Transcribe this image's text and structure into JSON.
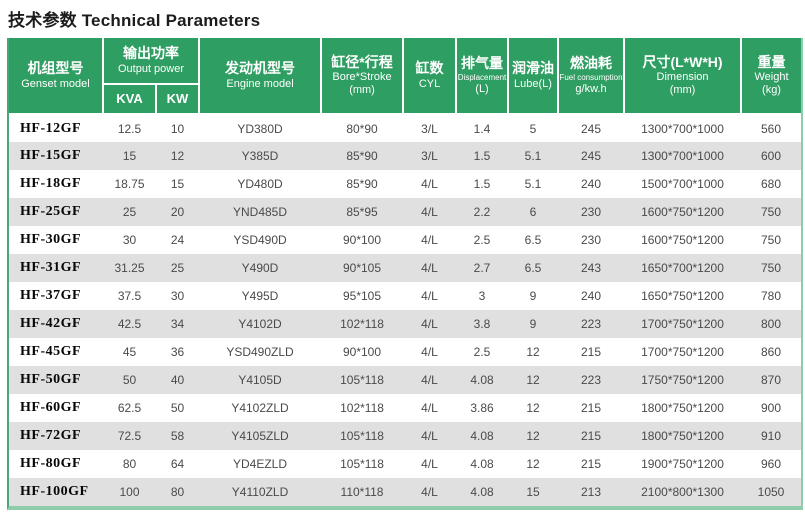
{
  "page_title": "技术参数 Technical Parameters",
  "colors": {
    "header_green": "#2f9e62",
    "stripe_gray": "#e0e0e0",
    "edge_green": "#46a876",
    "edge_light_green": "#8fccab",
    "cell_text": "#4a4a4a",
    "title_text": "#1c1c1c"
  },
  "header": {
    "genset_model": {
      "zh": "机组型号",
      "en": "Genset model"
    },
    "output_power": {
      "zh": "输出功率",
      "en": "Output power"
    },
    "kva": "KVA",
    "kw": "KW",
    "engine_model": {
      "zh": "发动机型号",
      "en": "Engine model"
    },
    "bore_stroke": {
      "zh": "缸径*行程",
      "en": "Bore*Stroke",
      "unit": "(mm)"
    },
    "cyl": {
      "zh": "缸数",
      "en": "CYL"
    },
    "displacement": {
      "zh": "排气量",
      "en": "Displacement",
      "unit": "(L)"
    },
    "lube": {
      "zh": "润滑油",
      "en": "Lube(L)"
    },
    "fuel": {
      "zh": "燃油耗",
      "en": "Fuel consumption",
      "unit": "g/kw.h"
    },
    "dimension": {
      "zh": "尺寸(L*W*H)",
      "en": "Dimension",
      "unit": "(mm)"
    },
    "weight": {
      "zh": "重量",
      "en": "Weight",
      "unit": "(kg)"
    }
  },
  "table": {
    "rows": [
      [
        "HF-12GF",
        "12.5",
        "10",
        "YD380D",
        "80*90",
        "3/L",
        "1.4",
        "5",
        "245",
        "1300*700*1000",
        "560"
      ],
      [
        "HF-15GF",
        "15",
        "12",
        "Y385D",
        "85*90",
        "3/L",
        "1.5",
        "5.1",
        "245",
        "1300*700*1000",
        "600"
      ],
      [
        "HF-18GF",
        "18.75",
        "15",
        "YD480D",
        "85*90",
        "4/L",
        "1.5",
        "5.1",
        "240",
        "1500*700*1000",
        "680"
      ],
      [
        "HF-25GF",
        "25",
        "20",
        "YND485D",
        "85*95",
        "4/L",
        "2.2",
        "6",
        "230",
        "1600*750*1200",
        "750"
      ],
      [
        "HF-30GF",
        "30",
        "24",
        "YSD490D",
        "90*100",
        "4/L",
        "2.5",
        "6.5",
        "230",
        "1600*750*1200",
        "750"
      ],
      [
        "HF-31GF",
        "31.25",
        "25",
        "Y490D",
        "90*105",
        "4/L",
        "2.7",
        "6.5",
        "243",
        "1650*700*1200",
        "750"
      ],
      [
        "HF-37GF",
        "37.5",
        "30",
        "Y495D",
        "95*105",
        "4/L",
        "3",
        "9",
        "240",
        "1650*750*1200",
        "780"
      ],
      [
        "HF-42GF",
        "42.5",
        "34",
        "Y4102D",
        "102*118",
        "4/L",
        "3.8",
        "9",
        "223",
        "1700*750*1200",
        "800"
      ],
      [
        "HF-45GF",
        "45",
        "36",
        "YSD490ZLD",
        "90*100",
        "4/L",
        "2.5",
        "12",
        "215",
        "1700*750*1200",
        "860"
      ],
      [
        "HF-50GF",
        "50",
        "40",
        "Y4105D",
        "105*118",
        "4/L",
        "4.08",
        "12",
        "223",
        "1750*750*1200",
        "870"
      ],
      [
        "HF-60GF",
        "62.5",
        "50",
        "Y4102ZLD",
        "102*118",
        "4/L",
        "3.86",
        "12",
        "215",
        "1800*750*1200",
        "900"
      ],
      [
        "HF-72GF",
        "72.5",
        "58",
        "Y4105ZLD",
        "105*118",
        "4/L",
        "4.08",
        "12",
        "215",
        "1800*750*1200",
        "910"
      ],
      [
        "HF-80GF",
        "80",
        "64",
        "YD4EZLD",
        "105*118",
        "4/L",
        "4.08",
        "12",
        "215",
        "1900*750*1200",
        "960"
      ],
      [
        "HF-100GF",
        "100",
        "80",
        "Y4110ZLD",
        "110*118",
        "4/L",
        "4.08",
        "15",
        "213",
        "2100*800*1300",
        "1050"
      ]
    ]
  }
}
